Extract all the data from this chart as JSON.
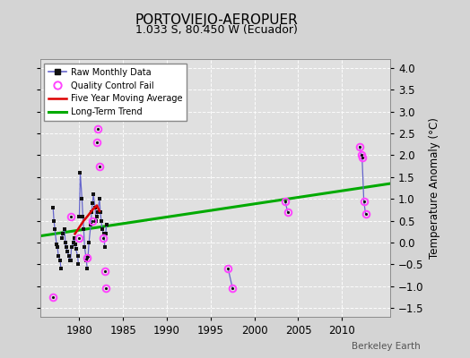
{
  "title": "PORTOVIEJO-AEROPUER",
  "subtitle": "1.033 S, 80.450 W (Ecuador)",
  "ylabel": "Temperature Anomaly (°C)",
  "credit": "Berkeley Earth",
  "ylim": [
    -1.7,
    4.2
  ],
  "xlim": [
    1975.5,
    2015.5
  ],
  "xticks": [
    1980,
    1985,
    1990,
    1995,
    2000,
    2005,
    2010
  ],
  "yticks": [
    -1.5,
    -1.0,
    -0.5,
    0.0,
    0.5,
    1.0,
    1.5,
    2.0,
    2.5,
    3.0,
    3.5,
    4.0
  ],
  "fig_bg": "#d4d4d4",
  "plot_bg": "#e0e0e0",
  "raw_segments": [
    {
      "x": [
        1977.0,
        1977.1,
        1977.2,
        1977.4,
        1977.5,
        1977.6,
        1977.8,
        1977.9
      ],
      "y": [
        0.8,
        0.5,
        0.3,
        -0.05,
        -0.1,
        -0.3,
        -0.4,
        -0.6
      ]
    },
    {
      "x": [
        1978.0,
        1978.1,
        1978.3,
        1978.4,
        1978.5,
        1978.6,
        1978.8,
        1978.9
      ],
      "y": [
        0.1,
        0.2,
        0.3,
        0.0,
        -0.1,
        -0.2,
        -0.3,
        -0.4
      ]
    },
    {
      "x": [
        1979.0,
        1979.1,
        1979.3,
        1979.4,
        1979.5,
        1979.6,
        1979.8,
        1979.9
      ],
      "y": [
        -0.4,
        -0.1,
        0.0,
        0.1,
        -0.05,
        -0.15,
        -0.3,
        -0.5
      ]
    },
    {
      "x": [
        1980.0,
        1980.1,
        1980.3,
        1980.4,
        1980.5,
        1980.6,
        1980.8,
        1980.9
      ],
      "y": [
        0.6,
        1.6,
        1.0,
        0.6,
        0.3,
        -0.1,
        -0.4,
        -0.6
      ]
    },
    {
      "x": [
        1981.0,
        1981.1,
        1981.3,
        1981.4,
        1981.5,
        1981.6,
        1981.8,
        1981.9
      ],
      "y": [
        -0.3,
        0.0,
        0.4,
        0.7,
        0.9,
        1.1,
        0.8,
        0.5
      ]
    },
    {
      "x": [
        1982.0,
        1982.1,
        1982.3,
        1982.4,
        1982.5,
        1982.6,
        1982.8,
        1982.9
      ],
      "y": [
        0.6,
        0.7,
        1.0,
        0.7,
        0.5,
        0.3,
        0.2,
        -0.1
      ]
    },
    {
      "x": [
        1983.0,
        1983.1
      ],
      "y": [
        0.2,
        0.4
      ]
    }
  ],
  "qc_fail_points": [
    [
      1977.0,
      -1.25
    ],
    [
      1979.0,
      0.6
    ],
    [
      1980.0,
      0.1
    ],
    [
      1980.9,
      -0.35
    ],
    [
      1981.5,
      0.5
    ],
    [
      1982.0,
      2.3
    ],
    [
      1982.1,
      2.6
    ],
    [
      1982.3,
      1.75
    ],
    [
      1982.7,
      0.1
    ],
    [
      1982.9,
      -0.65
    ],
    [
      1983.0,
      -1.05
    ],
    [
      1997.0,
      -0.6
    ],
    [
      1997.5,
      -1.05
    ],
    [
      2003.5,
      0.95
    ],
    [
      2003.8,
      0.7
    ],
    [
      2012.0,
      2.2
    ],
    [
      2012.2,
      2.0
    ],
    [
      2012.3,
      1.95
    ],
    [
      2012.5,
      0.95
    ],
    [
      2012.7,
      0.65
    ]
  ],
  "qc_line_segments": [
    {
      "x": [
        1997.0,
        1997.5
      ],
      "y": [
        -0.6,
        -1.05
      ]
    },
    {
      "x": [
        2003.5,
        2003.8
      ],
      "y": [
        0.95,
        0.7
      ]
    },
    {
      "x": [
        2012.0,
        2012.2,
        2012.3,
        2012.5,
        2012.7
      ],
      "y": [
        2.2,
        2.0,
        1.95,
        0.95,
        0.65
      ]
    }
  ],
  "five_yr_ma": {
    "x": [
      1979.5,
      1980.0,
      1980.5,
      1981.0,
      1981.5,
      1982.0,
      1982.3
    ],
    "y": [
      0.2,
      0.35,
      0.5,
      0.62,
      0.75,
      0.85,
      0.72
    ]
  },
  "trend_x": [
    1975.5,
    2015.5
  ],
  "trend_y": [
    0.15,
    1.35
  ],
  "raw_line_color": "#6666cc",
  "raw_dot_color": "#111111",
  "qc_color": "#ff44ff",
  "ma_color": "#dd0000",
  "trend_color": "#00aa00",
  "legend_entries": [
    "Raw Monthly Data",
    "Quality Control Fail",
    "Five Year Moving Average",
    "Long-Term Trend"
  ]
}
